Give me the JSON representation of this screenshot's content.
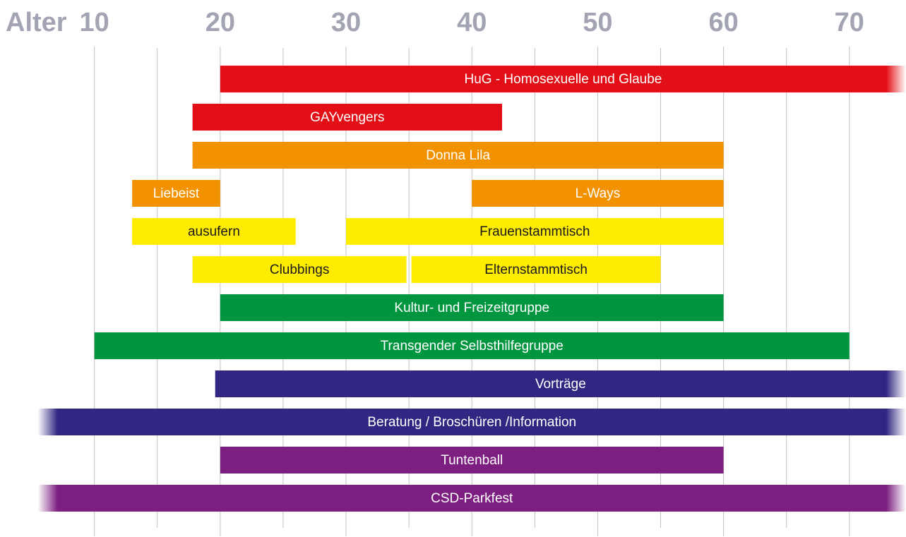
{
  "chart_data": {
    "type": "range_bar",
    "axis_label": "Alter",
    "xlim": [
      2.5,
      74.5
    ],
    "xticks": [
      10,
      20,
      30,
      40,
      50,
      60,
      70
    ],
    "minor_xticks": [
      15,
      25,
      35,
      45,
      55,
      65
    ],
    "grid": true,
    "rows": [
      [
        {
          "name": "HuG - Homosexuelle und Glaube",
          "range": [
            20,
            74.5
          ],
          "color": "#e30f17",
          "text_color": "#ffffff",
          "fade": [
            "end"
          ]
        }
      ],
      [
        {
          "name": "GAYvengers",
          "range": [
            17.8,
            42.4
          ],
          "color": "#e30f17",
          "text_color": "#ffffff",
          "fade": []
        }
      ],
      [
        {
          "name": "Donna Lila",
          "range": [
            17.8,
            60
          ],
          "color": "#f39200",
          "text_color": "#ffffff",
          "fade": []
        }
      ],
      [
        {
          "name": "Liebeist",
          "range": [
            13,
            20
          ],
          "color": "#f39200",
          "text_color": "#ffffff",
          "fade": []
        },
        {
          "name": "L-Ways",
          "range": [
            40,
            60
          ],
          "color": "#f39200",
          "text_color": "#ffffff",
          "fade": []
        }
      ],
      [
        {
          "name": "ausufern",
          "range": [
            13,
            26
          ],
          "color": "#ffed00",
          "text_color": "#1a1a1a",
          "fade": []
        },
        {
          "name": "Frauenstammtisch",
          "range": [
            30,
            60
          ],
          "color": "#ffed00",
          "text_color": "#1a1a1a",
          "fade": []
        }
      ],
      [
        {
          "name": "Clubbings",
          "range": [
            17.8,
            34.8
          ],
          "color": "#ffed00",
          "text_color": "#1a1a1a",
          "fade": []
        },
        {
          "name": "Elternstammtisch",
          "range": [
            35.2,
            55
          ],
          "color": "#ffed00",
          "text_color": "#1a1a1a",
          "fade": []
        }
      ],
      [
        {
          "name": "Kultur- und Freizeitgruppe",
          "range": [
            20,
            60
          ],
          "color": "#009640",
          "text_color": "#ffffff",
          "fade": []
        }
      ],
      [
        {
          "name": "Transgender Selbsthilfegruppe",
          "range": [
            10,
            70
          ],
          "color": "#009640",
          "text_color": "#ffffff",
          "fade": []
        }
      ],
      [
        {
          "name": "Vorträge",
          "range": [
            19.6,
            74.5
          ],
          "color": "#312783",
          "text_color": "#ffffff",
          "fade": [
            "end"
          ]
        }
      ],
      [
        {
          "name": "Beratung / Broschüren /Information",
          "range": [
            5.5,
            74.5
          ],
          "color": "#312783",
          "text_color": "#ffffff",
          "fade": [
            "start",
            "end"
          ]
        }
      ],
      [
        {
          "name": "Tuntenball",
          "range": [
            20,
            60
          ],
          "color": "#7d1f80",
          "text_color": "#ffffff",
          "fade": []
        }
      ],
      [
        {
          "name": "CSD-Parkfest",
          "range": [
            5.5,
            74.5
          ],
          "color": "#7d1f80",
          "text_color": "#ffffff",
          "fade": [
            "start",
            "end"
          ]
        }
      ]
    ]
  }
}
